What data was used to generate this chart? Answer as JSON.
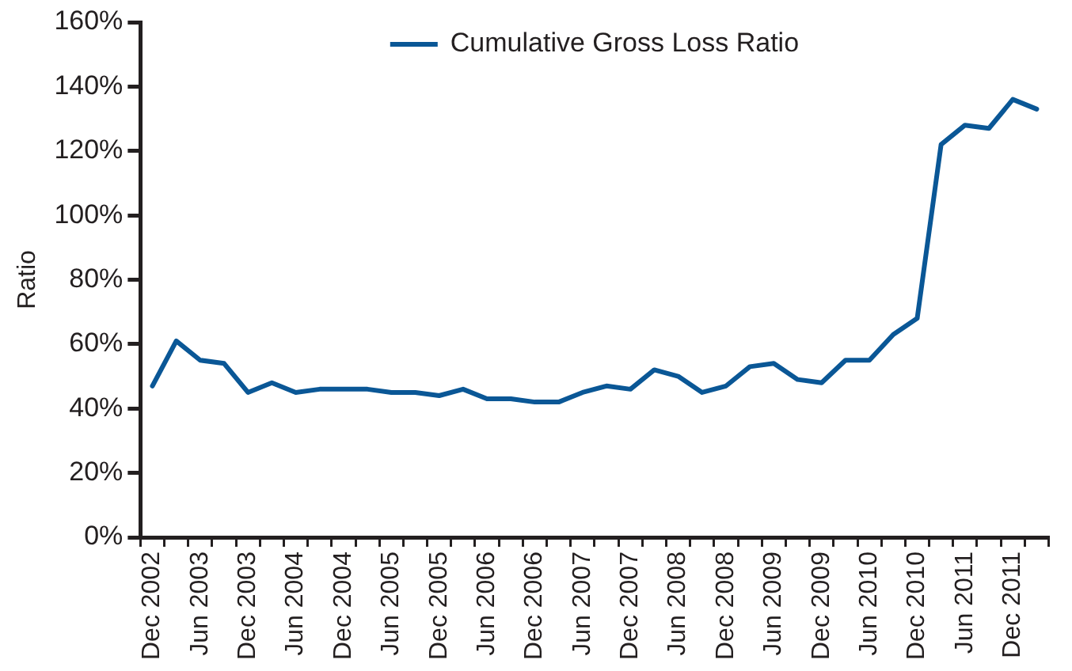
{
  "chart_data": {
    "type": "line",
    "ylabel": "Ratio",
    "categories": [
      "Dec 2002",
      null,
      "Jun 2003",
      null,
      "Dec 2003",
      null,
      "Jun 2004",
      null,
      "Dec 2004",
      null,
      "Jun 2005",
      null,
      "Dec 2005",
      null,
      "Jun 2006",
      null,
      "Dec 2006",
      null,
      "Jun 2007",
      null,
      "Dec 2007",
      null,
      "Jun 2008",
      null,
      "Dec 2008",
      null,
      "Jun 2009",
      null,
      "Dec 2009",
      null,
      "Jun 2010",
      null,
      "Dec 2010",
      null,
      "Jun 2011",
      null,
      "Dec 2011",
      null
    ],
    "series": [
      {
        "name": "Cumulative Gross Loss Ratio",
        "color": "#0a5796",
        "values": [
          47,
          61,
          55,
          54,
          45,
          48,
          45,
          46,
          46,
          46,
          45,
          45,
          44,
          46,
          43,
          43,
          42,
          42,
          45,
          47,
          46,
          52,
          50,
          45,
          47,
          53,
          54,
          49,
          48,
          55,
          55,
          63,
          68,
          122,
          128,
          127,
          136,
          133
        ]
      }
    ],
    "ylim": [
      0,
      160
    ],
    "yticks": [
      {
        "value": 0,
        "label": "0%"
      },
      {
        "value": 20,
        "label": "20%"
      },
      {
        "value": 40,
        "label": "40%"
      },
      {
        "value": 60,
        "label": "60%"
      },
      {
        "value": 80,
        "label": "80%"
      },
      {
        "value": 100,
        "label": "100%"
      },
      {
        "value": 120,
        "label": "120%"
      },
      {
        "value": 140,
        "label": "140%"
      },
      {
        "value": 160,
        "label": "160%"
      }
    ],
    "grid": false,
    "legend": "top",
    "marker": "none",
    "line_style": "solid"
  }
}
